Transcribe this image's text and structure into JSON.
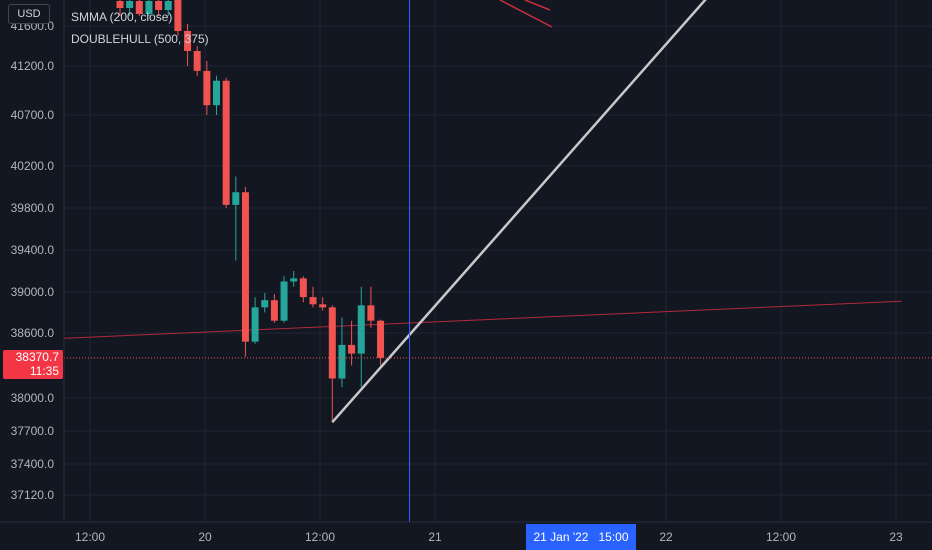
{
  "currency_label": "USD",
  "legend": {
    "smma": "SMMA (200, close)",
    "doublehull": "DOUBLEHULL (500, 375)"
  },
  "price_tag": {
    "value": "38370.7",
    "countdown": "11:35"
  },
  "crosshair_time_label": "21 Jan '22   15:00",
  "colors": {
    "background": "#131722",
    "up": "#26a69a",
    "down": "#f05350",
    "grid": "#1f2433",
    "text": "#b2b5be",
    "trendline": "#c8c8c8",
    "crosshair": "#2962ff"
  },
  "chart_data": {
    "type": "candlestick",
    "y_ticks": [
      "41600.0",
      "41200.0",
      "40700.0",
      "40200.0",
      "39800.0",
      "39400.0",
      "39000.0",
      "38600.0",
      "38000.0",
      "37700.0",
      "37400.0",
      "37120.0"
    ],
    "x_ticks": [
      "12:00",
      "20",
      "12:00",
      "21",
      "22",
      "12:00",
      "23"
    ],
    "ylim": [
      36950,
      41900
    ],
    "candles": [
      {
        "o": 41850,
        "h": 41900,
        "l": 41700,
        "c": 41780
      },
      {
        "o": 41780,
        "h": 41900,
        "l": 41700,
        "c": 41850
      },
      {
        "o": 41850,
        "h": 41900,
        "l": 41700,
        "c": 41720
      },
      {
        "o": 41720,
        "h": 41900,
        "l": 41700,
        "c": 41850
      },
      {
        "o": 41850,
        "h": 41900,
        "l": 41700,
        "c": 41760
      },
      {
        "o": 41760,
        "h": 41900,
        "l": 41700,
        "c": 41850
      },
      {
        "o": 41900,
        "h": 41900,
        "l": 41500,
        "c": 41550
      },
      {
        "o": 41550,
        "h": 41620,
        "l": 41200,
        "c": 41350
      },
      {
        "o": 41350,
        "h": 41400,
        "l": 41100,
        "c": 41150
      },
      {
        "o": 41150,
        "h": 41250,
        "l": 40700,
        "c": 40800
      },
      {
        "o": 40800,
        "h": 41100,
        "l": 40700,
        "c": 41050
      },
      {
        "o": 41050,
        "h": 41080,
        "l": 39800,
        "c": 39830
      },
      {
        "o": 39830,
        "h": 40100,
        "l": 39300,
        "c": 39950
      },
      {
        "o": 39950,
        "h": 40000,
        "l": 38380,
        "c": 38520
      },
      {
        "o": 38520,
        "h": 38950,
        "l": 38500,
        "c": 38850
      },
      {
        "o": 38850,
        "h": 38990,
        "l": 38800,
        "c": 38920
      },
      {
        "o": 38920,
        "h": 38980,
        "l": 38700,
        "c": 38720
      },
      {
        "o": 38720,
        "h": 39150,
        "l": 38700,
        "c": 39100
      },
      {
        "o": 39100,
        "h": 39200,
        "l": 39050,
        "c": 39130
      },
      {
        "o": 39130,
        "h": 39150,
        "l": 38900,
        "c": 38950
      },
      {
        "o": 38950,
        "h": 39050,
        "l": 38850,
        "c": 38880
      },
      {
        "o": 38880,
        "h": 38950,
        "l": 38820,
        "c": 38850
      },
      {
        "o": 38850,
        "h": 38870,
        "l": 37780,
        "c": 38180
      },
      {
        "o": 38180,
        "h": 38750,
        "l": 38100,
        "c": 38490
      },
      {
        "o": 38490,
        "h": 38720,
        "l": 38300,
        "c": 38410
      },
      {
        "o": 38410,
        "h": 39050,
        "l": 38100,
        "c": 38870
      },
      {
        "o": 38870,
        "h": 39050,
        "l": 38650,
        "c": 38720
      },
      {
        "o": 38720,
        "h": 38730,
        "l": 38300,
        "c": 38370.7
      }
    ],
    "trendline": {
      "from_index": 22,
      "from_price": 37780,
      "to_index": 61,
      "to_price": 41900
    },
    "smma_line": {
      "from_index": -6,
      "from_price": 38550,
      "to_index": 81,
      "to_price": 38910
    },
    "current_price": 38370.7,
    "crosshair_index": 30
  }
}
